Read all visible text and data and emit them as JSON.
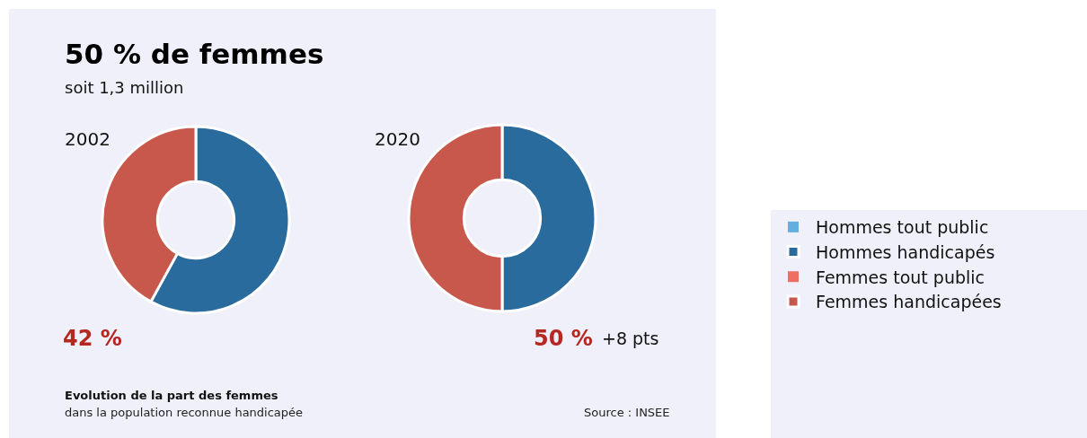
{
  "chart_data": [
    {
      "type": "donut",
      "title": "50 % de femmes",
      "subtitle": "soit 1,3 million",
      "categories": [
        "Hommes tout public",
        "Hommes handicapés",
        "Femmes tout public",
        "Femmes handicapées"
      ],
      "values": [
        null,
        58,
        null,
        42
      ],
      "colors": [
        "#62aee0",
        "#2a6b9e",
        "#ee6f62",
        "#c8574c"
      ],
      "legend": "right",
      "annotations": [
        "2002",
        "42 %",
        "Evolution de la part des femmes",
        "dans la population reconnue handicapée",
        "Source : INSEE"
      ]
    },
    {
      "type": "donut",
      "categories": [
        null,
        null,
        null,
        null
      ],
      "values": [
        null,
        50,
        null,
        50
      ],
      "colors": [
        "#62aee0",
        "#2a6b9e",
        "#ee6f62",
        "#c8574c"
      ],
      "annotations": [
        "2020",
        "50 %",
        "+8 pts"
      ]
    }
  ]
}
